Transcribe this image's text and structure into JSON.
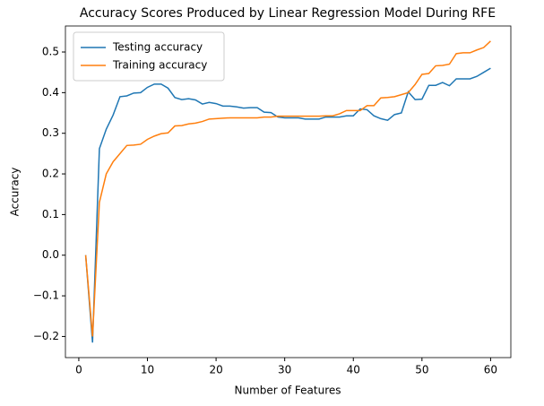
{
  "chart_data": {
    "type": "line",
    "title": "Accuracy Scores Produced by Linear Regression Model During RFE",
    "x_label": "Number of Features",
    "y_label": "Accuracy",
    "x": [
      1,
      2,
      3,
      4,
      5,
      6,
      7,
      8,
      9,
      10,
      11,
      12,
      13,
      14,
      15,
      16,
      17,
      18,
      19,
      20,
      21,
      22,
      23,
      24,
      25,
      26,
      27,
      28,
      29,
      30,
      31,
      32,
      33,
      34,
      35,
      36,
      37,
      38,
      39,
      40,
      41,
      42,
      43,
      44,
      45,
      46,
      47,
      48,
      49,
      50,
      51,
      52,
      53,
      54,
      55,
      56,
      57,
      58,
      59,
      60
    ],
    "series": [
      {
        "name": "Testing accuracy",
        "color": "#1f77b4",
        "values": [
          0.0,
          -0.215,
          0.262,
          0.31,
          0.345,
          0.39,
          0.392,
          0.399,
          0.4,
          0.413,
          0.421,
          0.421,
          0.411,
          0.388,
          0.383,
          0.385,
          0.382,
          0.372,
          0.376,
          0.373,
          0.367,
          0.367,
          0.365,
          0.362,
          0.363,
          0.363,
          0.352,
          0.351,
          0.34,
          0.338,
          0.338,
          0.338,
          0.335,
          0.335,
          0.335,
          0.34,
          0.34,
          0.34,
          0.343,
          0.343,
          0.36,
          0.358,
          0.343,
          0.336,
          0.332,
          0.346,
          0.35,
          0.402,
          0.383,
          0.384,
          0.418,
          0.418,
          0.425,
          0.417,
          0.434,
          0.434,
          0.434,
          0.44,
          0.45,
          0.46
        ]
      },
      {
        "name": "Training accuracy",
        "color": "#ff7f0e",
        "values": [
          0.0,
          -0.2,
          0.13,
          0.2,
          0.23,
          0.25,
          0.27,
          0.271,
          0.273,
          0.285,
          0.293,
          0.299,
          0.301,
          0.318,
          0.319,
          0.323,
          0.325,
          0.329,
          0.335,
          0.336,
          0.337,
          0.338,
          0.338,
          0.338,
          0.338,
          0.338,
          0.34,
          0.34,
          0.342,
          0.342,
          0.342,
          0.342,
          0.342,
          0.342,
          0.342,
          0.343,
          0.343,
          0.348,
          0.356,
          0.356,
          0.356,
          0.368,
          0.368,
          0.387,
          0.388,
          0.39,
          0.395,
          0.4,
          0.42,
          0.445,
          0.447,
          0.466,
          0.467,
          0.47,
          0.496,
          0.498,
          0.498,
          0.505,
          0.511,
          0.527
        ]
      }
    ],
    "xlim": [
      -1.95,
      62.95
    ],
    "ylim": [
      -0.252,
      0.564
    ],
    "xticks": [
      0,
      10,
      20,
      30,
      40,
      50,
      60
    ],
    "yticks": [
      {
        "value": -0.2,
        "label": "−0.2"
      },
      {
        "value": -0.1,
        "label": "−0.1"
      },
      {
        "value": 0,
        "label": "0.0"
      },
      0.1,
      0.2,
      0.3,
      0.4,
      0.5
    ],
    "legend": "upper left",
    "grid": false
  }
}
